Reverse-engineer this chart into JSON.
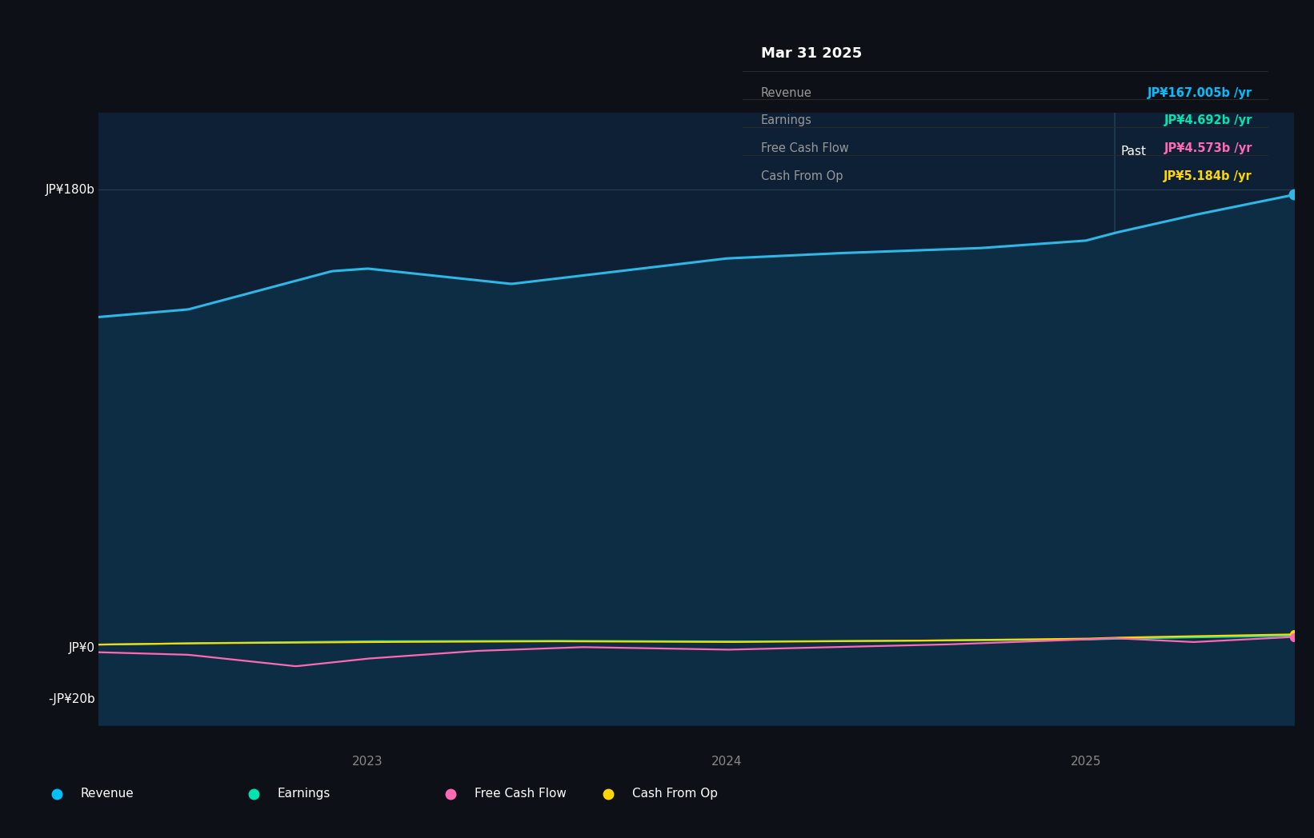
{
  "bg_color": "#0d1117",
  "plot_bg_color": "#0e2035",
  "plot_bg_left": "#0d1b2a",
  "tooltip_bg": "#080c10",
  "grid_color": "#263e50",
  "title_text": "Mar 31 2025",
  "tooltip_labels": [
    "Revenue",
    "Earnings",
    "Free Cash Flow",
    "Cash From Op"
  ],
  "tooltip_values": [
    "JP¥167.005b /yr",
    "JP¥4.692b /yr",
    "JP¥4.573b /yr",
    "JP¥5.184b /yr"
  ],
  "tooltip_value_colors": [
    "#00bfff",
    "#00e5b0",
    "#ff69b4",
    "#ffd700"
  ],
  "ylabel_180": "JP¥180b",
  "ylabel_0": "JP¥0",
  "ylabel_neg20": "-JP¥20b",
  "xlabel_2023": "2023",
  "xlabel_2024": "2024",
  "xlabel_2025": "2025",
  "past_label": "Past",
  "legend_items": [
    "Revenue",
    "Earnings",
    "Free Cash Flow",
    "Cash From Op"
  ],
  "legend_colors": [
    "#00bfff",
    "#00e5b0",
    "#ff69b4",
    "#ffd700"
  ],
  "revenue_color": "#2eb8e6",
  "revenue_fill": "#0d2d45",
  "earnings_color": "#00e5b0",
  "fcf_color": "#ff69b4",
  "cashop_color": "#ffd700",
  "ylim_min": -30,
  "ylim_max": 210,
  "xmin": 2022.25,
  "xmax": 2025.58,
  "vline_x": 2025.08
}
